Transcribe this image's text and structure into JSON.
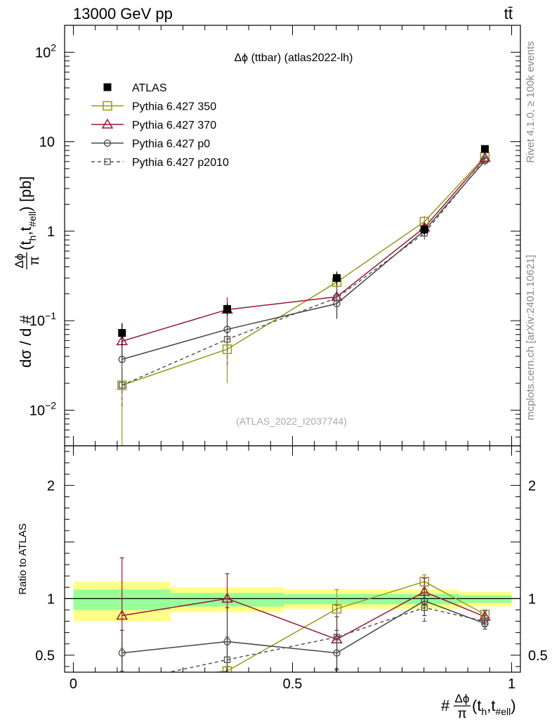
{
  "header": {
    "energy_label": "13000 GeV pp",
    "process_label": "tt̄",
    "side_label_rivet": "Rivet 4.1.0, ≥ 100k events",
    "side_label_site": "mcplots.cern.ch [arXiv:2401.10621]"
  },
  "chart_data": [
    {
      "panel": "main",
      "type": "line",
      "title": "Δϕ (ttbar) (atlas2022-lh)",
      "watermark": "(ATLAS_2022_I2037744)",
      "yscale": "log",
      "ylabel_prefix": "dσ / d #",
      "ylabel_frac_num": "Δϕ",
      "ylabel_frac_den": "π",
      "ylabel_suffix": "(t",
      "ylabel_sub1": "h",
      "ylabel_mid": ",t",
      "ylabel_sub2": "#ell",
      "ylabel_end": ") [pb]",
      "xlim": [
        -0.02,
        1.02
      ],
      "ylim": [
        0.004,
        200
      ],
      "yticks": [
        {
          "value": 0.01,
          "base": "10",
          "exp": "−2"
        },
        {
          "value": 0.1,
          "base": "10",
          "exp": "−1"
        },
        {
          "value": 1,
          "base": "1",
          "exp": ""
        },
        {
          "value": 10,
          "base": "10",
          "exp": ""
        },
        {
          "value": 100,
          "base": "10",
          "exp": "2"
        }
      ],
      "legend": [
        {
          "name": "ATLAS",
          "color": "#000000",
          "marker": "filled-square",
          "dash": ""
        },
        {
          "name": "Pythia 6.427 350",
          "color": "#999919",
          "marker": "open-square",
          "dash": ""
        },
        {
          "name": "Pythia 6.427 370",
          "color": "#991933",
          "marker": "open-triangle",
          "dash": ""
        },
        {
          "name": "Pythia 6.427 p0",
          "color": "#444444",
          "marker": "open-circle",
          "dash": ""
        },
        {
          "name": "Pythia 6.427 p2010",
          "color": "#555555",
          "marker": "open-square-small",
          "dash": "5,4"
        }
      ],
      "data": {
        "x": [
          0.111,
          0.351,
          0.601,
          0.801,
          0.939
        ],
        "ATLAS": [
          0.073,
          0.135,
          0.3,
          1.05,
          8.3
        ],
        "ATLAS_err": [
          0.02,
          0.02,
          0.05,
          0.15,
          0.8
        ]
      },
      "series": [
        {
          "name": "Pythia 6.427 350",
          "values": [
            0.019,
            0.048,
            0.27,
            1.28,
            6.8
          ],
          "err_lo": [
            0.019,
            0.028,
            0.09,
            0.2,
            0.5
          ],
          "err_hi": [
            0.01,
            0.02,
            0.09,
            0.2,
            0.5
          ]
        },
        {
          "name": "Pythia 6.427 370",
          "values": [
            0.059,
            0.133,
            0.185,
            1.1,
            6.6
          ],
          "err_lo": [
            0.025,
            0.05,
            0.08,
            0.15,
            0.5
          ],
          "err_hi": [
            0.035,
            0.05,
            0.08,
            0.15,
            0.5
          ]
        },
        {
          "name": "Pythia 6.427 p0",
          "values": [
            0.037,
            0.08,
            0.155,
            1.02,
            6.1
          ],
          "err_lo": [
            0.02,
            0.03,
            0.05,
            0.15,
            0.5
          ],
          "err_hi": [
            0.02,
            0.03,
            0.05,
            0.15,
            0.5
          ]
        },
        {
          "name": "Pythia 6.427 p2010",
          "values": [
            0.019,
            0.062,
            0.18,
            0.95,
            6.3
          ],
          "err_lo": [
            0.008,
            0.03,
            0.07,
            0.14,
            0.5
          ],
          "err_hi": [
            0.008,
            0.03,
            0.07,
            0.14,
            0.5
          ]
        }
      ]
    },
    {
      "panel": "ratio",
      "type": "line",
      "ylabel": "Ratio to ATLAS",
      "xlabel_prefix": "#",
      "xlabel_frac_num": "Δϕ",
      "xlabel_frac_den": "π",
      "xlabel_suffix": "(t",
      "xlabel_sub1": "h",
      "xlabel_mid": ",t",
      "xlabel_sub2": "#ell",
      "xlabel_end": ")",
      "xlim": [
        -0.02,
        1.02
      ],
      "ylim": [
        0.35,
        2.35
      ],
      "xticks": [
        {
          "value": 0,
          "label": "0"
        },
        {
          "value": 0.5,
          "label": "0.5"
        },
        {
          "value": 1,
          "label": "1"
        }
      ],
      "yticks": [
        {
          "value": 0.5,
          "label": "0.5"
        },
        {
          "value": 1,
          "label": "1"
        },
        {
          "value": 2,
          "label": "2"
        }
      ],
      "bands": [
        {
          "x0": 0.0,
          "x1": 0.222,
          "yellow": [
            0.8,
            1.15
          ],
          "green": [
            0.9,
            1.08
          ]
        },
        {
          "x0": 0.222,
          "x1": 0.48,
          "yellow": [
            0.88,
            1.1
          ],
          "green": [
            0.93,
            1.05
          ]
        },
        {
          "x0": 0.48,
          "x1": 0.88,
          "yellow": [
            0.91,
            1.08
          ],
          "green": [
            0.95,
            1.04
          ]
        },
        {
          "x0": 0.88,
          "x1": 1.0,
          "yellow": [
            0.93,
            1.06
          ],
          "green": [
            0.96,
            1.03
          ]
        }
      ],
      "x": [
        0.111,
        0.351,
        0.601,
        0.801,
        0.939
      ],
      "series": [
        {
          "name": "Pythia 6.427 350",
          "values": [
            0.26,
            0.36,
            0.91,
            1.15,
            0.86
          ],
          "err_lo": [
            0.3,
            0.3,
            0.3,
            0.06,
            0.05
          ],
          "err_hi": [
            0.3,
            0.3,
            0.17,
            0.06,
            0.04
          ]
        },
        {
          "name": "Pythia 6.427 370",
          "values": [
            0.85,
            1.0,
            0.64,
            1.06,
            0.84
          ],
          "err_lo": [
            0.5,
            0.6,
            0.27,
            0.12,
            0.05
          ],
          "err_hi": [
            0.51,
            0.22,
            0.2,
            0.12,
            0.05
          ]
        },
        {
          "name": "Pythia 6.427 p0",
          "values": [
            0.52,
            0.62,
            0.52,
            0.98,
            0.78
          ],
          "err_lo": [
            0.2,
            0.3,
            0.2,
            0.13,
            0.05
          ],
          "err_hi": [
            0.2,
            0.3,
            0.2,
            0.13,
            0.05
          ]
        },
        {
          "name": "Pythia 6.427 p2010",
          "values": [
            0.26,
            0.46,
            0.66,
            0.92,
            0.8
          ],
          "err_lo": [
            0.1,
            0.2,
            0.28,
            0.12,
            0.05
          ],
          "err_hi": [
            0.1,
            0.2,
            0.28,
            0.12,
            0.05
          ]
        }
      ]
    }
  ]
}
